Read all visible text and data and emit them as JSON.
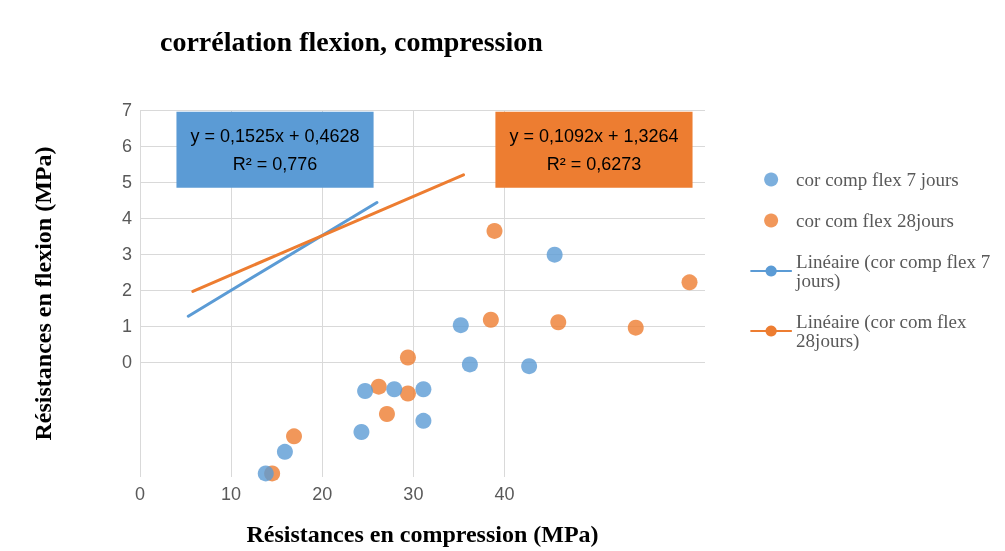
{
  "chart_data": {
    "type": "scatter",
    "title": "corrélation flexion, compression",
    "xlabel": "Résistances en compression (MPa)",
    "ylabel": "Résistances en flexion (MPa)",
    "series": [
      {
        "name": "cor comp flex 7 jours",
        "color": "#5b9bd5",
        "x": [
          45.5,
          35.2,
          36.2,
          42.7,
          24.7,
          27.9,
          31.1,
          31.1,
          24.3,
          15.9,
          13.8
        ],
        "values": [
          2.98,
          1.02,
          -0.07,
          -0.12,
          -0.81,
          -0.76,
          -0.76,
          -1.64,
          -1.95,
          -2.5,
          -3.1
        ]
      },
      {
        "name": "cor com flex 28jours",
        "color": "#ed7d31",
        "x": [
          38.9,
          60.3,
          38.5,
          45.9,
          54.4,
          29.4,
          26.2,
          29.4,
          27.1,
          16.9,
          14.5
        ],
        "values": [
          3.64,
          2.21,
          1.17,
          1.1,
          0.95,
          0.12,
          -0.69,
          -0.88,
          -1.45,
          -2.07,
          -3.1
        ]
      },
      {
        "name": "Linéaire (cor comp flex 7 jours)",
        "type": "line",
        "marker": "none",
        "color": "#5b9bd5",
        "x": [
          5.3,
          26
        ],
        "values": [
          1.27,
          4.43
        ]
      },
      {
        "name": "Linéaire (cor com flex 28jours)",
        "type": "line",
        "marker": "none",
        "color": "#ed7d31",
        "x": [
          5.8,
          35.5
        ],
        "values": [
          1.96,
          5.2
        ]
      }
    ],
    "annotations": [
      "y = 0,1525x + 0,4628\nR² = 0,776",
      "y = 0,1092x + 1,3264\nR² = 0,6273"
    ],
    "xlim": [
      0,
      62
    ],
    "ylim": [
      -3.2,
      7
    ],
    "xticks": [
      0,
      10,
      20,
      30,
      40
    ],
    "yticks": [
      0,
      1,
      2,
      3,
      4,
      5,
      6,
      7
    ],
    "grid": true,
    "legend": "right",
    "marker": "circle"
  }
}
